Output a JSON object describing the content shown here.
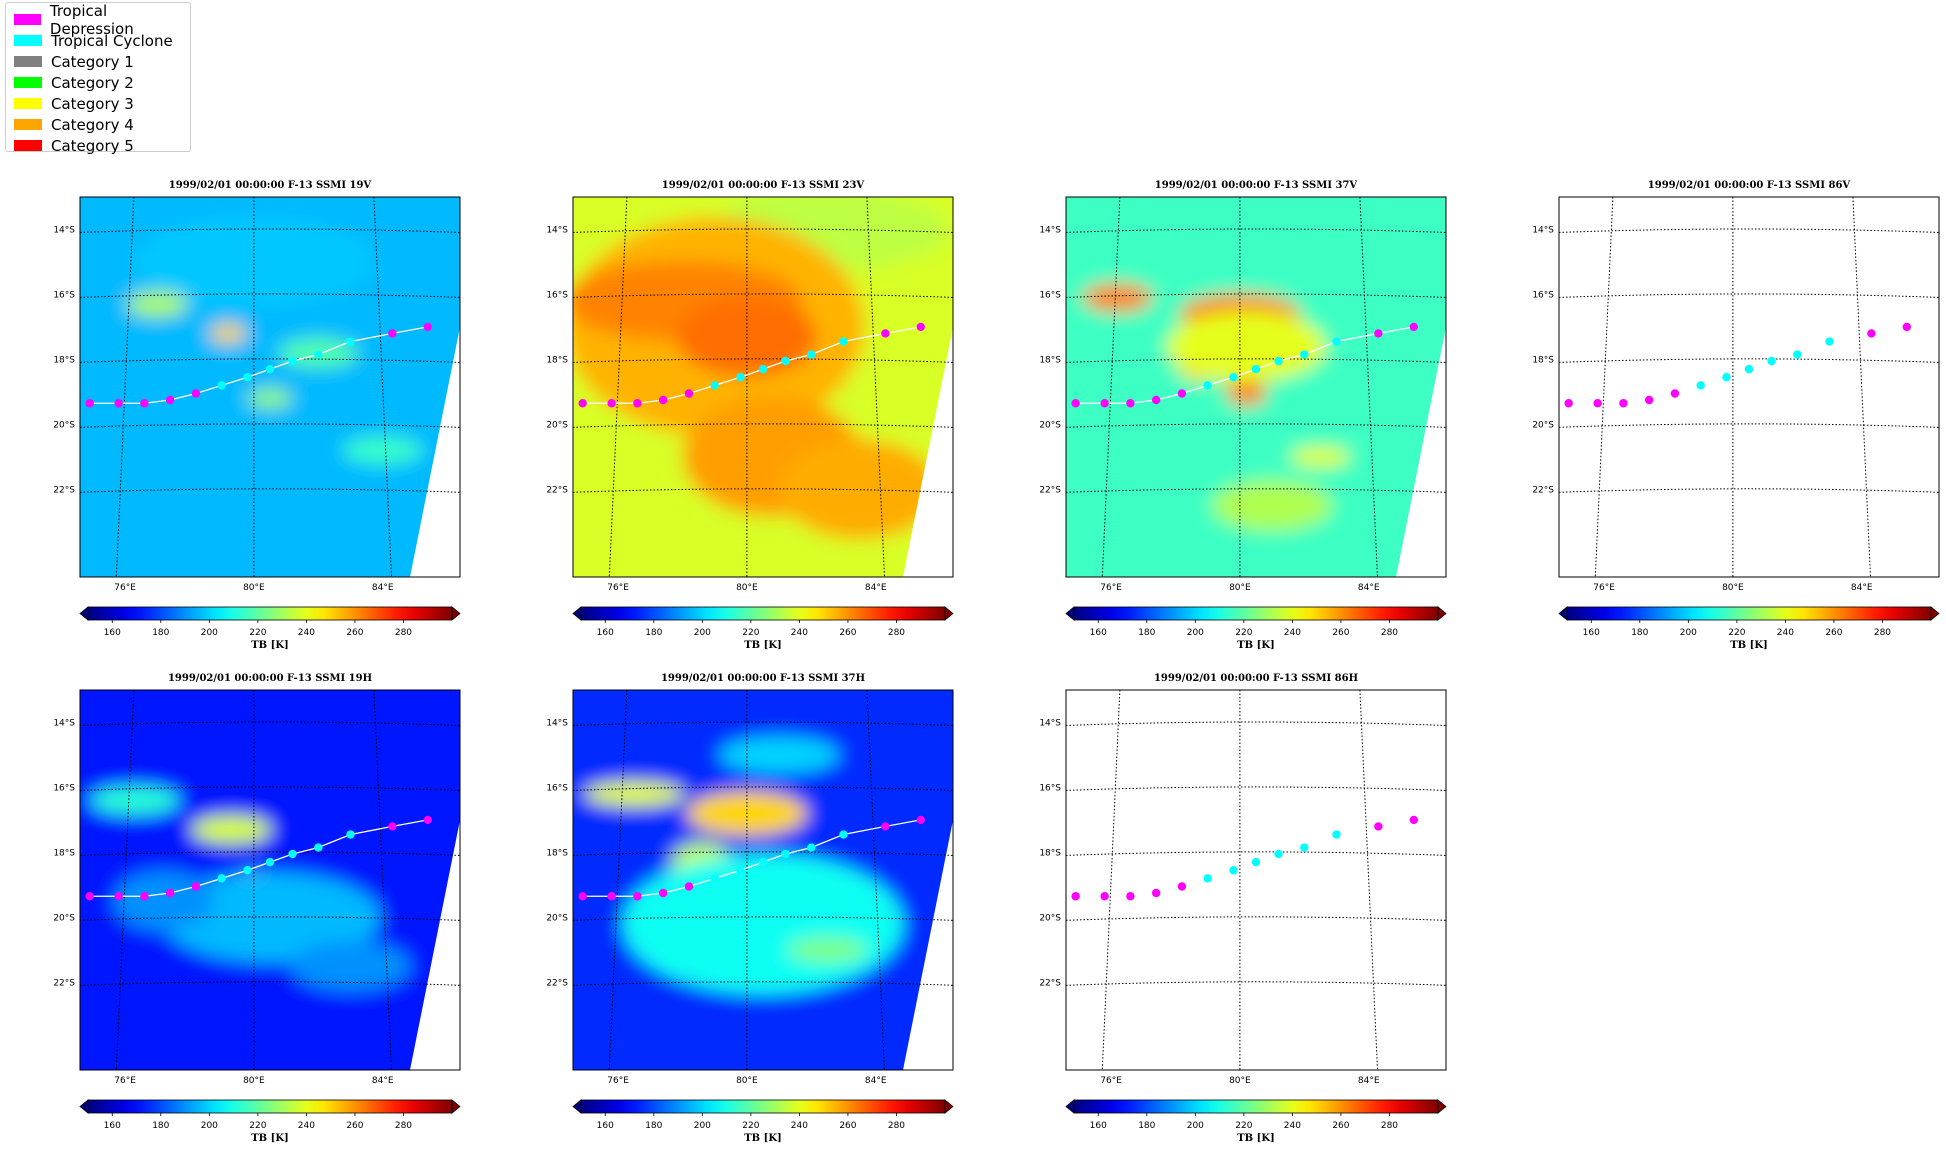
{
  "legend": {
    "items": [
      {
        "label": "Tropical Depression",
        "color": "#ff00ff"
      },
      {
        "label": "Tropical Cyclone",
        "color": "#00ffff"
      },
      {
        "label": "Category 1",
        "color": "#808080"
      },
      {
        "label": "Category 2",
        "color": "#00ff00"
      },
      {
        "label": "Category 3",
        "color": "#ffff00"
      },
      {
        "label": "Category 4",
        "color": "#ffa500"
      },
      {
        "label": "Category 5",
        "color": "#ff0000"
      }
    ]
  },
  "chart_data": {
    "type": "heatmap",
    "colormap": "jet",
    "colorbar": {
      "label": "TB [K]",
      "ticks": [
        160,
        180,
        200,
        220,
        240,
        260,
        280
      ],
      "range": [
        150,
        300
      ],
      "extend": "both"
    },
    "xticks": [
      76,
      80,
      84
    ],
    "xtick_labels": [
      "76°E",
      "80°E",
      "84°E"
    ],
    "yticks": [
      -14,
      -16,
      -18,
      -20,
      -22
    ],
    "ytick_labels": [
      "14°S",
      "16°S",
      "18°S",
      "20°S",
      "22°S"
    ],
    "lon_range": [
      74.6,
      86.4
    ],
    "lat_range": [
      -24.7,
      -13.0
    ],
    "grid": true,
    "track": {
      "lon": [
        74.9,
        75.8,
        76.6,
        77.4,
        78.2,
        79.0,
        79.8,
        80.5,
        81.2,
        82.0,
        83.0,
        84.3,
        85.4
      ],
      "lat": [
        -19.35,
        -19.35,
        -19.35,
        -19.25,
        -19.05,
        -18.8,
        -18.55,
        -18.3,
        -18.05,
        -17.85,
        -17.45,
        -17.2,
        -17.0
      ],
      "class": [
        "TD",
        "TD",
        "TD",
        "TD",
        "TD",
        "TC",
        "TC",
        "TC",
        "TC",
        "TC",
        "TC",
        "TD",
        "TD"
      ]
    },
    "panels": [
      {
        "title": "1999/02/01 00:00:00  F-13 SSMI 19V",
        "field": "19V",
        "has_data": true
      },
      {
        "title": "1999/02/01 00:00:00  F-13 SSMI 23V",
        "field": "23V",
        "has_data": true
      },
      {
        "title": "1999/02/01 00:00:00  F-13 SSMI 37V",
        "field": "37V",
        "has_data": true
      },
      {
        "title": "1999/02/01 00:00:00  F-13 SSMI 86V",
        "field": "86V",
        "has_data": false
      },
      {
        "title": "1999/02/01 00:00:00  F-13 SSMI 19H",
        "field": "19H",
        "has_data": true
      },
      {
        "title": "1999/02/01 00:00:00  F-13 SSMI 37H",
        "field": "37H",
        "has_data": true
      },
      {
        "title": "1999/02/01 00:00:00  F-13 SSMI 86H",
        "field": "86H",
        "has_data": false
      }
    ]
  }
}
